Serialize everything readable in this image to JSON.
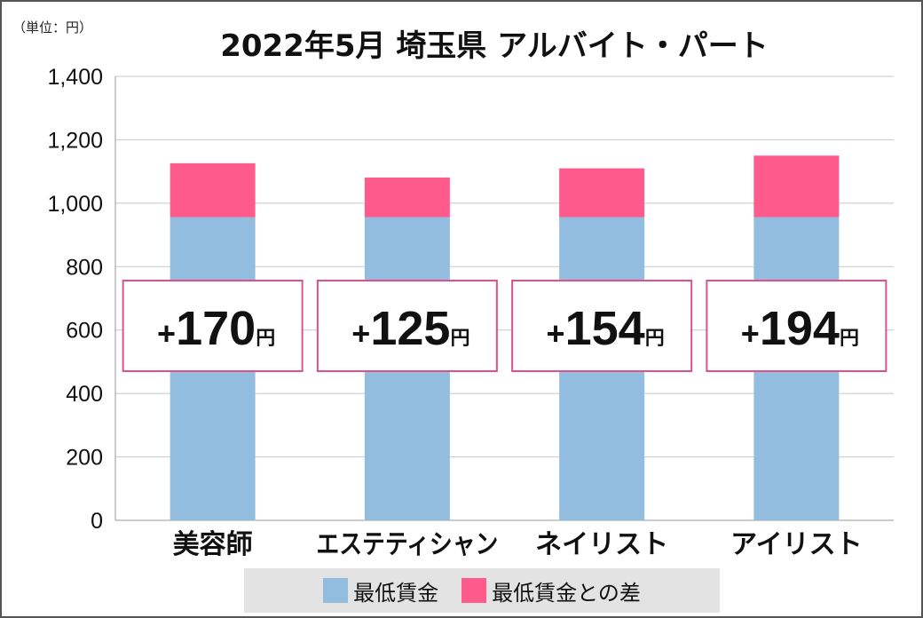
{
  "unit_label": "（単位：円）",
  "chart_data": {
    "type": "bar",
    "stacked": true,
    "title": "2022年5月 埼玉県 アルバイト・パート",
    "categories": [
      "美容師",
      "エステティシャン",
      "ネイリスト",
      "アイリスト"
    ],
    "series": [
      {
        "name": "最低賃金",
        "color": "#92bddf",
        "values": [
          956,
          956,
          956,
          956
        ]
      },
      {
        "name": "最低賃金との差",
        "color": "#ff5a8c",
        "values": [
          170,
          125,
          154,
          194
        ]
      }
    ],
    "annotations": [
      {
        "prefix": "+",
        "number": "170",
        "unit": "円"
      },
      {
        "prefix": "+",
        "number": "125",
        "unit": "円"
      },
      {
        "prefix": "+",
        "number": "154",
        "unit": "円"
      },
      {
        "prefix": "+",
        "number": "194",
        "unit": "円"
      }
    ],
    "yticks": [
      "0",
      "200",
      "400",
      "600",
      "800",
      "1,000",
      "1,200",
      "1,400"
    ],
    "ylim": [
      0,
      1400
    ],
    "grid": true,
    "legend_position": "bottom"
  }
}
